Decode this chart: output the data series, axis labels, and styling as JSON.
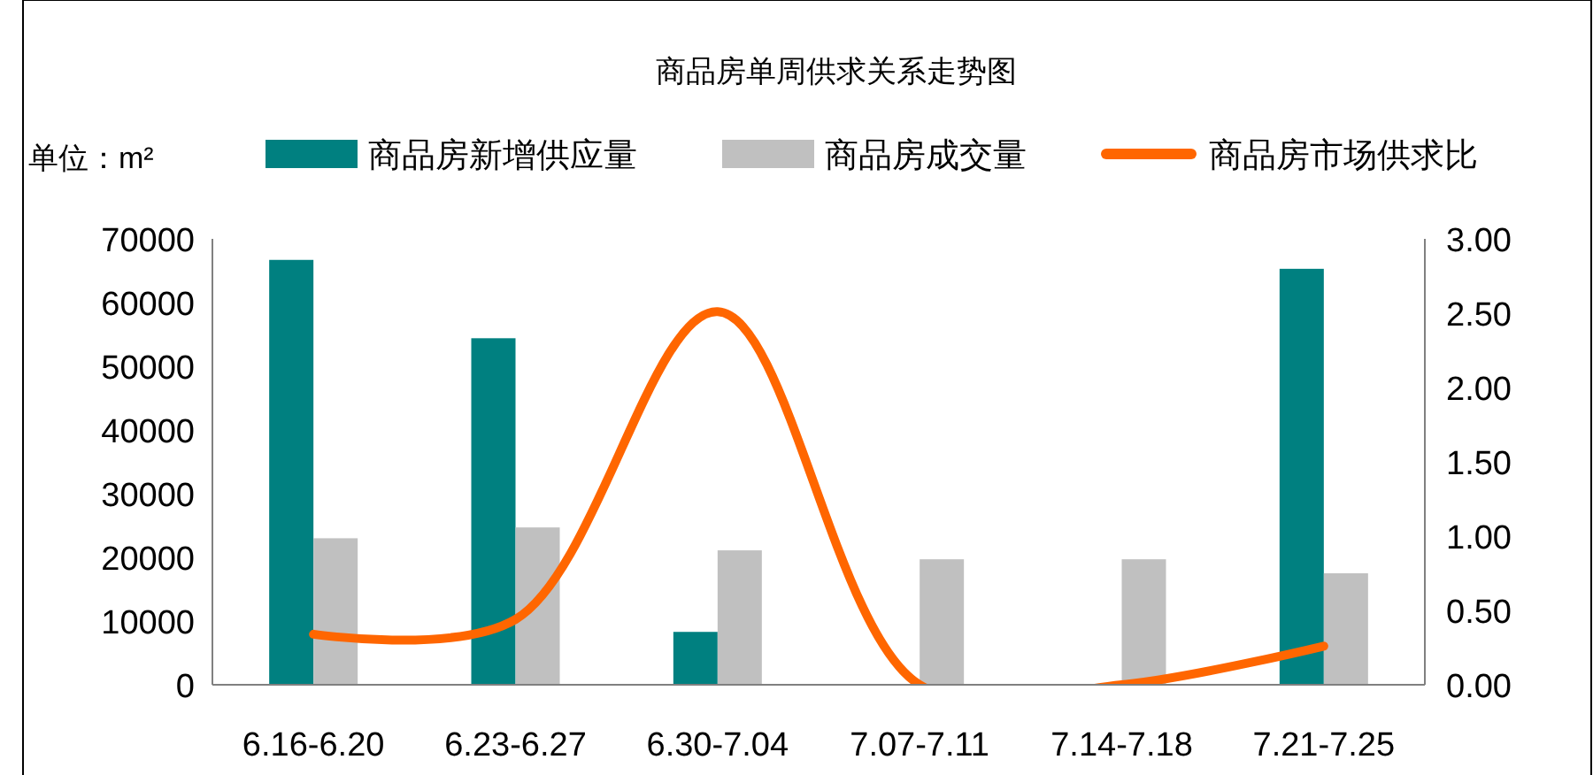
{
  "chart_data": {
    "type": "bar",
    "title": "商品房单周供求关系走势图",
    "ylabel": "单位：m²",
    "categories": [
      "6.16-6.20",
      "6.23-6.27",
      "6.30-7.04",
      "7.07-7.11",
      "7.14-7.18",
      "7.21-7.25"
    ],
    "series": [
      {
        "name": "商品房新增供应量",
        "color": "#008080",
        "values": [
          66700,
          54400,
          8300,
          0,
          0,
          65300
        ]
      },
      {
        "name": "商品房成交量",
        "color": "#c0c0c0",
        "values": [
          23000,
          24700,
          21100,
          19700,
          19700,
          17500
        ]
      },
      {
        "name": "商品房市场供求比",
        "type": "line",
        "axis": "y2",
        "color": "#ff6600",
        "values": [
          0.34,
          0.44,
          2.51,
          0,
          0,
          0.26
        ]
      }
    ],
    "ylim": [
      0,
      70000
    ],
    "yticks": [
      0,
      10000,
      20000,
      30000,
      40000,
      50000,
      60000,
      70000
    ],
    "y2lim": [
      0,
      3
    ],
    "y2ticks": [
      {
        "value": 0,
        "label": "0.00"
      },
      {
        "value": 0.5,
        "label": "0.50"
      },
      {
        "value": 1,
        "label": "1.00"
      },
      {
        "value": 1.5,
        "label": "1.50"
      },
      {
        "value": 2,
        "label": "2.00"
      },
      {
        "value": 2.5,
        "label": "2.50"
      },
      {
        "value": 3,
        "label": "3.00"
      }
    ],
    "legend": "top",
    "grid": false
  }
}
